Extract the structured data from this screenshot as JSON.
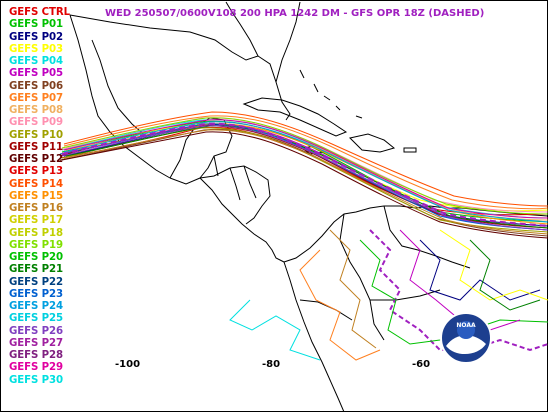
{
  "header": {
    "title": "WED 250507/0600V108  200 HPA 1242 DM - GFS OPR 18Z (DASHED)",
    "title_color": "#a020c0"
  },
  "legend": [
    {
      "label": "GEFS CTRL",
      "color": "#e00000"
    },
    {
      "label": "GEFS P01",
      "color": "#00c000"
    },
    {
      "label": "GEFS P02",
      "color": "#000080"
    },
    {
      "label": "GEFS P03",
      "color": "#ffff00"
    },
    {
      "label": "GEFS P04",
      "color": "#00e0e0"
    },
    {
      "label": "GEFS P05",
      "color": "#c000c0"
    },
    {
      "label": "GEFS P06",
      "color": "#804020"
    },
    {
      "label": "GEFS P07",
      "color": "#ff8020"
    },
    {
      "label": "GEFS P08",
      "color": "#f0b060"
    },
    {
      "label": "GEFS P09",
      "color": "#ff90b0"
    },
    {
      "label": "GEFS P10",
      "color": "#a0a000"
    },
    {
      "label": "GEFS P11",
      "color": "#a00000"
    },
    {
      "label": "GEFS P12",
      "color": "#600000"
    },
    {
      "label": "GEFS P13",
      "color": "#e00000"
    },
    {
      "label": "GEFS P14",
      "color": "#ff5000"
    },
    {
      "label": "GEFS P15",
      "color": "#ff9000"
    },
    {
      "label": "GEFS P16",
      "color": "#c08020"
    },
    {
      "label": "GEFS P17",
      "color": "#d0d000"
    },
    {
      "label": "GEFS P18",
      "color": "#c0d000"
    },
    {
      "label": "GEFS P19",
      "color": "#80e000"
    },
    {
      "label": "GEFS P20",
      "color": "#00c000"
    },
    {
      "label": "GEFS P21",
      "color": "#008000"
    },
    {
      "label": "GEFS P22",
      "color": "#004080"
    },
    {
      "label": "GEFS P23",
      "color": "#0060d0"
    },
    {
      "label": "GEFS P24",
      "color": "#00a0e0"
    },
    {
      "label": "GEFS P25",
      "color": "#00d0e0"
    },
    {
      "label": "GEFS P26",
      "color": "#8040c0"
    },
    {
      "label": "GEFS P27",
      "color": "#a020a0"
    },
    {
      "label": "GEFS P28",
      "color": "#802080"
    },
    {
      "label": "GEFS P29",
      "color": "#e000a0"
    },
    {
      "label": "GEFS P30",
      "color": "#00e0e0"
    }
  ],
  "longitude_labels": [
    "-100",
    "-80",
    "-60"
  ],
  "map": {
    "background": "#ffffff",
    "coastline_color": "#000000",
    "gfs_operational_color": "#a020c0"
  }
}
